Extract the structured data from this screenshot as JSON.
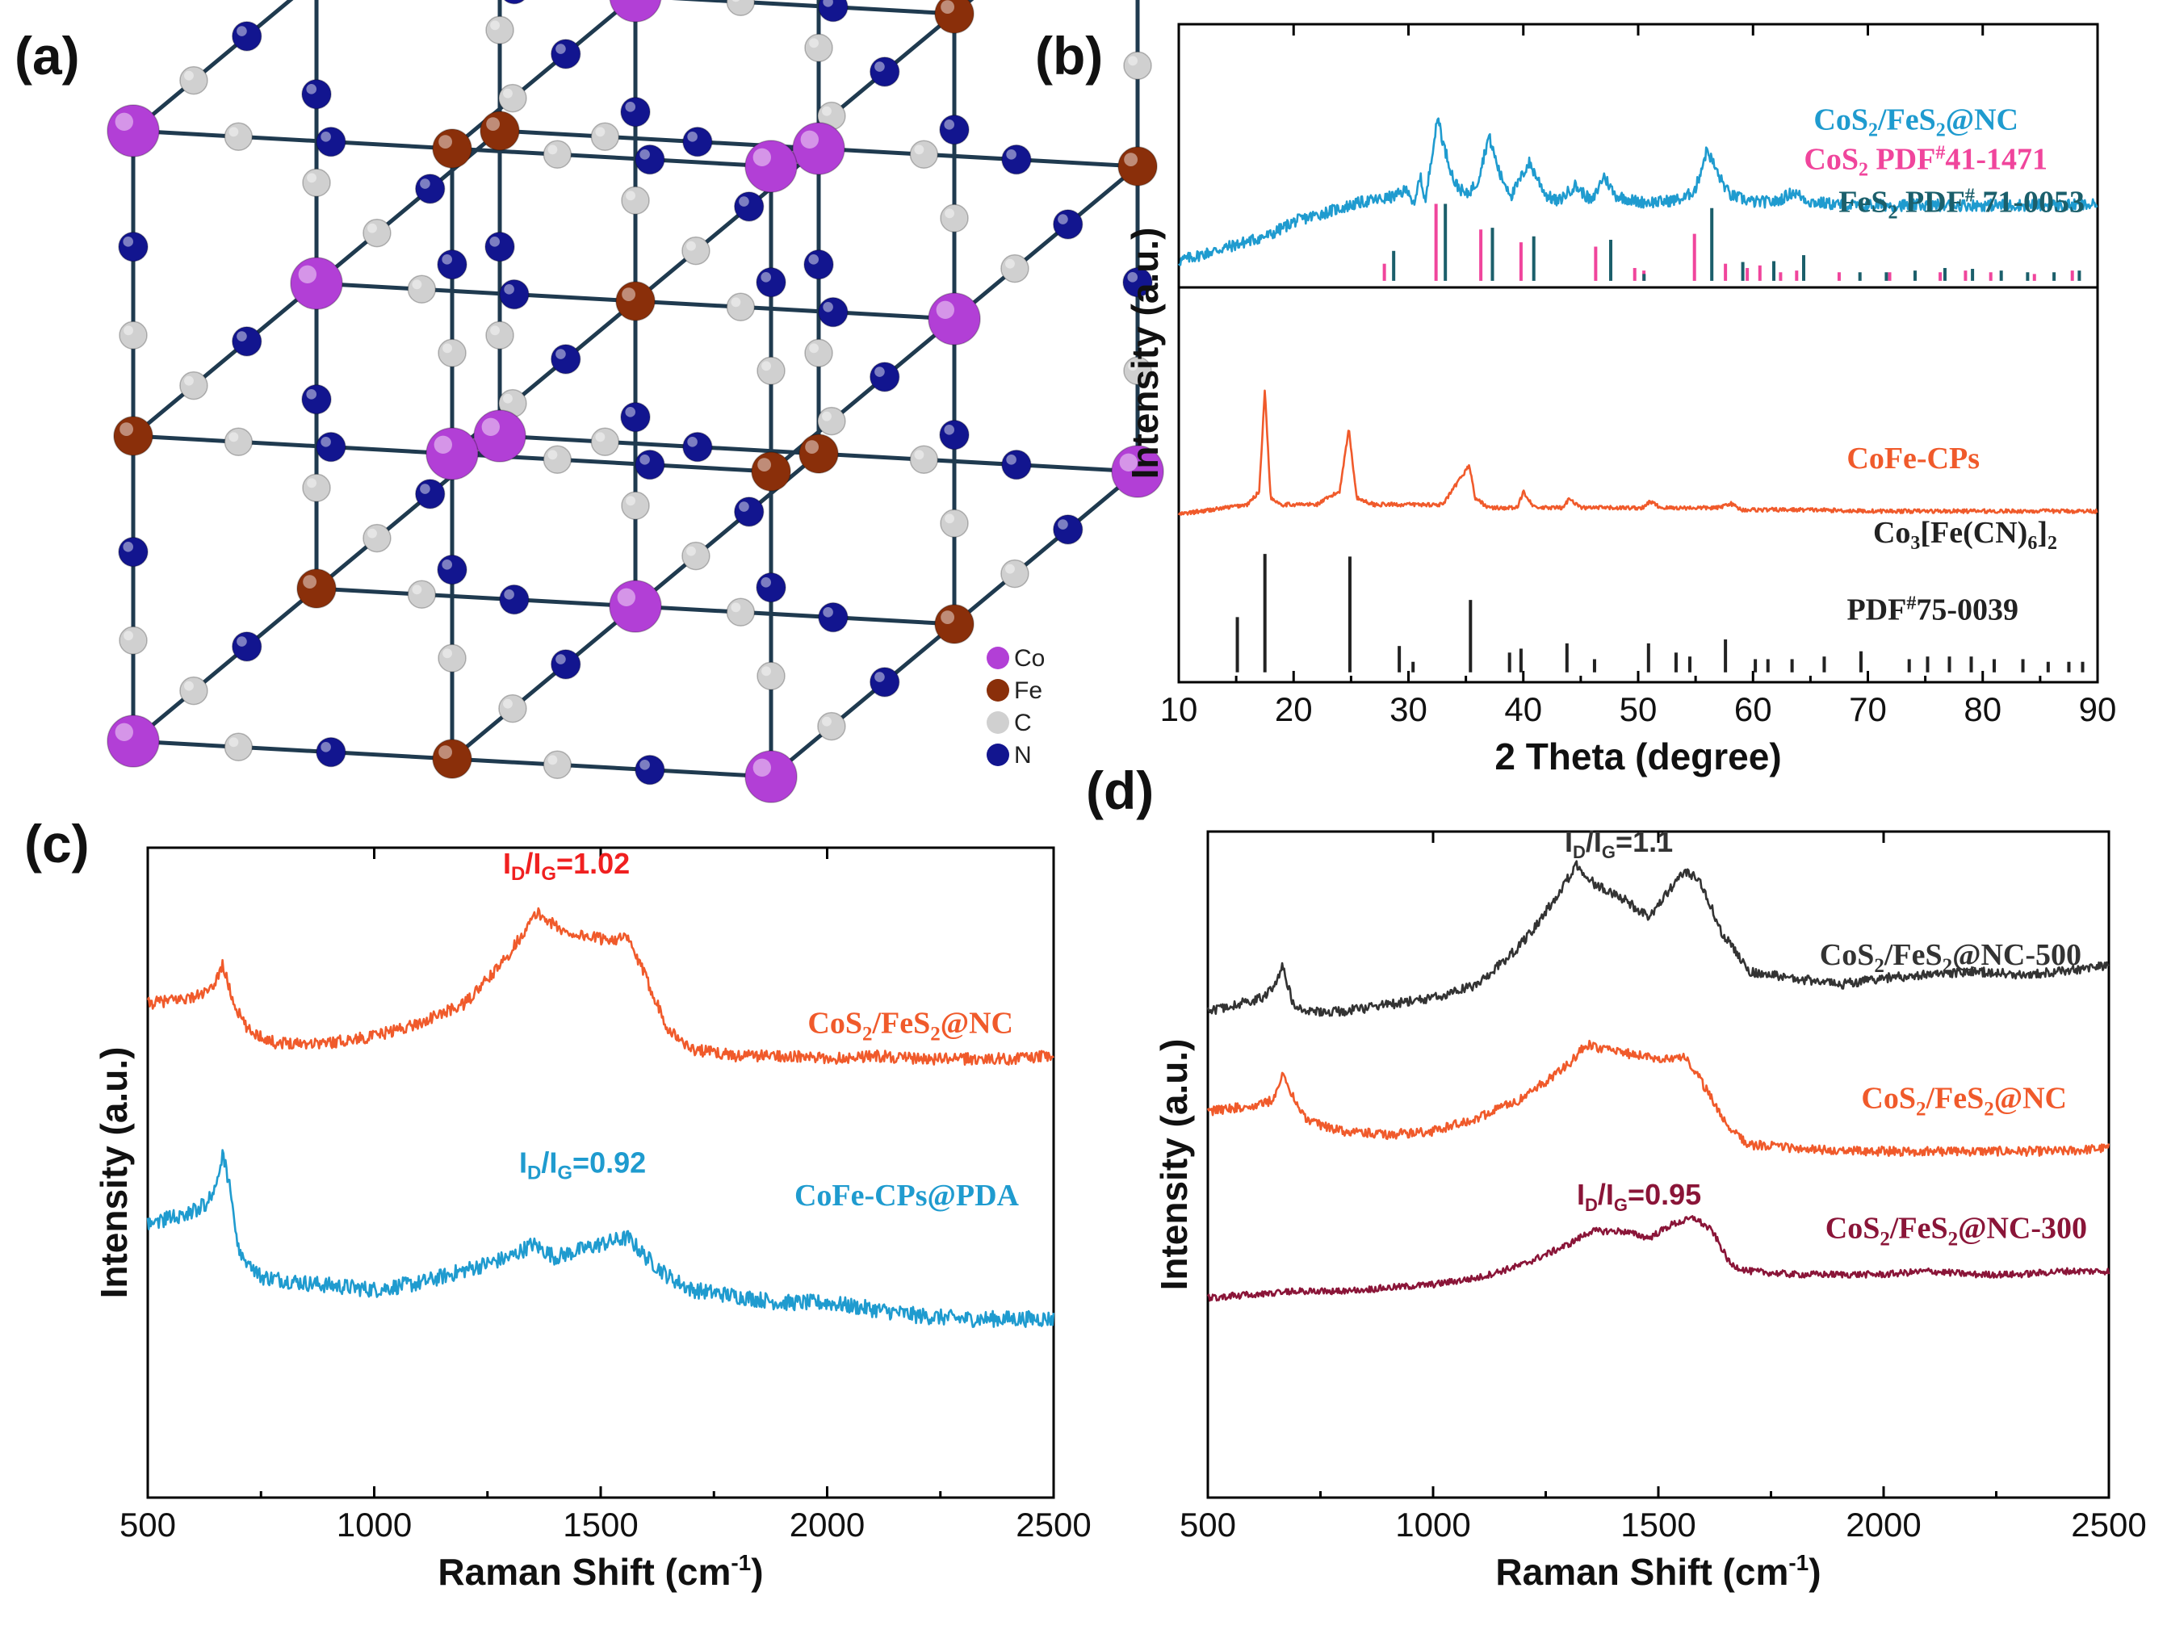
{
  "panel_labels": {
    "a": "(a)",
    "b": "(b)",
    "c": "(c)",
    "d": "(d)"
  },
  "lattice": {
    "legend": [
      {
        "label": "Co",
        "color": "#b23fd6"
      },
      {
        "label": "Fe",
        "color": "#8a2f0a"
      },
      {
        "label": "C",
        "color": "#d0d0d0"
      },
      {
        "label": "N",
        "color": "#12158f"
      }
    ]
  },
  "chart_data": [
    {
      "id": "b",
      "type": "line",
      "xlabel": "2 Theta (degree)",
      "ylabel": "Intensity (a.u.)",
      "xlim": [
        10,
        90
      ],
      "xticks": [
        10,
        20,
        30,
        40,
        50,
        60,
        70,
        80,
        90
      ],
      "series": [
        {
          "name": "CoS2/FeS2@NC",
          "label_main": "CoS",
          "label_sub": "2",
          "label_rest": "/FeS",
          "label_sub2": "2",
          "label_tail": "@NC",
          "color": "#1f9bcf",
          "x": [
            10,
            12,
            14,
            16,
            18,
            20,
            22,
            24,
            26,
            28,
            29,
            30,
            30.5,
            31,
            31.5,
            32,
            32.6,
            33,
            34,
            35,
            36,
            37,
            38,
            39,
            40.5,
            42,
            43,
            44.5,
            46,
            47,
            48,
            50,
            52,
            54,
            55,
            56,
            57,
            58,
            60,
            62,
            63.5,
            65,
            68,
            70,
            75,
            80,
            85,
            90
          ],
          "y": [
            0.64,
            0.65,
            0.66,
            0.67,
            0.68,
            0.7,
            0.71,
            0.72,
            0.73,
            0.735,
            0.74,
            0.75,
            0.72,
            0.77,
            0.73,
            0.8,
            0.86,
            0.82,
            0.76,
            0.74,
            0.76,
            0.83,
            0.77,
            0.74,
            0.79,
            0.74,
            0.73,
            0.755,
            0.73,
            0.77,
            0.74,
            0.73,
            0.73,
            0.735,
            0.75,
            0.81,
            0.77,
            0.74,
            0.73,
            0.73,
            0.745,
            0.73,
            0.725,
            0.725,
            0.725,
            0.725,
            0.725,
            0.725
          ]
        },
        {
          "name": "CoFe-CPs",
          "label_main": "CoFe-CPs",
          "color": "#f05a2b",
          "x": [
            10,
            14,
            16,
            17,
            17.5,
            18,
            19,
            22,
            24,
            24.8,
            25.5,
            27,
            33,
            35.3,
            35.8,
            37,
            39.5,
            40,
            41,
            43.5,
            44,
            45,
            50.5,
            51,
            52,
            57,
            58,
            59,
            65,
            70,
            80,
            90
          ],
          "y": [
            0.255,
            0.265,
            0.27,
            0.29,
            0.445,
            0.28,
            0.27,
            0.27,
            0.29,
            0.385,
            0.28,
            0.27,
            0.27,
            0.33,
            0.28,
            0.265,
            0.265,
            0.29,
            0.265,
            0.265,
            0.28,
            0.265,
            0.265,
            0.275,
            0.265,
            0.265,
            0.272,
            0.262,
            0.262,
            0.26,
            0.26,
            0.26
          ]
        }
      ],
      "reference_patterns": [
        {
          "name": "CoS2 PDF#41-1471",
          "label_main": "CoS",
          "label_sub": "2",
          "label_rest": "  PDF",
          "label_sup": "#",
          "label_tail": "41-1471",
          "color": "#f0459c",
          "peaks": [
            [
              27.9,
              0.2
            ],
            [
              32.4,
              0.9
            ],
            [
              36.3,
              0.6
            ],
            [
              39.8,
              0.45
            ],
            [
              46.3,
              0.4
            ],
            [
              49.7,
              0.15
            ],
            [
              50.5,
              0.12
            ],
            [
              54.9,
              0.55
            ],
            [
              57.6,
              0.2
            ],
            [
              59.5,
              0.15
            ],
            [
              60.6,
              0.18
            ],
            [
              62.4,
              0.1
            ],
            [
              63.8,
              0.12
            ],
            [
              67.5,
              0.1
            ],
            [
              71.9,
              0.1
            ],
            [
              76.3,
              0.1
            ],
            [
              78.5,
              0.12
            ],
            [
              80.7,
              0.1
            ],
            [
              84.5,
              0.08
            ],
            [
              87.8,
              0.12
            ]
          ]
        },
        {
          "name": "FeS2 PDF# 71-0053",
          "label_main": "FeS",
          "label_sub": "2",
          "label_rest": " PDF",
          "label_sup": "#",
          "label_tail": " 71-0053",
          "color": "#1b5f6b",
          "peaks": [
            [
              28.5,
              0.35
            ],
            [
              33.0,
              0.9
            ],
            [
              37.1,
              0.62
            ],
            [
              40.7,
              0.52
            ],
            [
              47.4,
              0.48
            ],
            [
              50.3,
              0.08
            ],
            [
              56.2,
              0.85
            ],
            [
              58.9,
              0.22
            ],
            [
              61.6,
              0.23
            ],
            [
              64.2,
              0.3
            ],
            [
              69.1,
              0.1
            ],
            [
              71.4,
              0.1
            ],
            [
              73.9,
              0.12
            ],
            [
              76.5,
              0.15
            ],
            [
              78.9,
              0.14
            ],
            [
              81.4,
              0.12
            ],
            [
              83.7,
              0.1
            ],
            [
              86.0,
              0.1
            ],
            [
              88.2,
              0.12
            ]
          ]
        },
        {
          "name": "Co3[Fe(CN)6]2 PDF#75-0039",
          "label_main": "Co",
          "label_sub": "3",
          "label_rest": "[Fe(CN)",
          "label_sub2": "6",
          "label_tail": "]",
          "label_sub3": "2",
          "pdf_label": "PDF",
          "pdf_sup": "#",
          "pdf_tail": "75-0039",
          "color": "#222222",
          "peaks": [
            [
              15.1,
              0.42
            ],
            [
              17.5,
              0.9
            ],
            [
              24.9,
              0.88
            ],
            [
              29.2,
              0.2
            ],
            [
              30.4,
              0.08
            ],
            [
              35.4,
              0.55
            ],
            [
              38.8,
              0.15
            ],
            [
              39.8,
              0.18
            ],
            [
              43.8,
              0.22
            ],
            [
              46.2,
              0.1
            ],
            [
              50.9,
              0.22
            ],
            [
              53.3,
              0.15
            ],
            [
              54.5,
              0.12
            ],
            [
              57.6,
              0.25
            ],
            [
              60.2,
              0.1
            ],
            [
              61.3,
              0.1
            ],
            [
              63.4,
              0.1
            ],
            [
              66.2,
              0.12
            ],
            [
              69.4,
              0.16
            ],
            [
              73.6,
              0.1
            ],
            [
              75.2,
              0.12
            ],
            [
              77.1,
              0.12
            ],
            [
              79.0,
              0.12
            ],
            [
              81.0,
              0.1
            ],
            [
              83.5,
              0.1
            ],
            [
              85.7,
              0.08
            ],
            [
              87.5,
              0.08
            ],
            [
              88.7,
              0.08
            ]
          ]
        }
      ]
    },
    {
      "id": "c",
      "type": "line",
      "xlabel": "Raman Shift (cm",
      "xlabel_sup": "-1",
      "xlabel_tail": ")",
      "ylabel": "Intensity (a.u.)",
      "xlim": [
        500,
        2500
      ],
      "xticks": [
        500,
        1000,
        1500,
        2000,
        2500
      ],
      "series": [
        {
          "name": "CoS2/FeS2@NC",
          "label_main": "CoS",
          "label_sub": "2",
          "label_rest": "/FeS",
          "label_sub2": "2",
          "label_tail": "@NC",
          "color": "#f05a2b",
          "ratio_main": "I",
          "ratio_sub": "D",
          "ratio_mid": "/I",
          "ratio_sub2": "G",
          "ratio_tail": "=1.02",
          "ratio_color": "#f02020",
          "x": [
            500,
            550,
            600,
            640,
            665,
            690,
            720,
            780,
            900,
            1000,
            1100,
            1200,
            1280,
            1340,
            1360,
            1420,
            1500,
            1560,
            1600,
            1650,
            1700,
            1800,
            1900,
            2000,
            2100,
            2200,
            2300,
            2400,
            2500
          ],
          "y": [
            0.76,
            0.765,
            0.77,
            0.78,
            0.82,
            0.76,
            0.72,
            0.7,
            0.7,
            0.71,
            0.73,
            0.76,
            0.82,
            0.88,
            0.9,
            0.87,
            0.86,
            0.86,
            0.8,
            0.72,
            0.69,
            0.68,
            0.68,
            0.675,
            0.68,
            0.675,
            0.675,
            0.675,
            0.68
          ]
        },
        {
          "name": "CoFe-CPs@PDA",
          "label_main": "CoFe-CPs@PDA",
          "color": "#1f9bcf",
          "ratio_main": "I",
          "ratio_sub": "D",
          "ratio_mid": "/I",
          "ratio_sub2": "G",
          "ratio_tail": "=0.92",
          "ratio_color": "#1f9bcf",
          "x": [
            500,
            550,
            600,
            640,
            665,
            680,
            700,
            750,
            850,
            1000,
            1100,
            1200,
            1300,
            1350,
            1400,
            1500,
            1560,
            1600,
            1650,
            1700,
            1800,
            1900,
            2000,
            2100,
            2200,
            2300,
            2400,
            2500
          ],
          "y": [
            0.42,
            0.43,
            0.44,
            0.46,
            0.53,
            0.48,
            0.38,
            0.34,
            0.33,
            0.32,
            0.33,
            0.35,
            0.37,
            0.39,
            0.37,
            0.39,
            0.4,
            0.37,
            0.34,
            0.32,
            0.31,
            0.3,
            0.3,
            0.29,
            0.28,
            0.275,
            0.275,
            0.275
          ]
        }
      ]
    },
    {
      "id": "d",
      "type": "line",
      "xlabel": "Raman Shift (cm",
      "xlabel_sup": "-1",
      "xlabel_tail": ")",
      "ylabel": "Intensity (a.u.)",
      "xlim": [
        500,
        2500
      ],
      "xticks": [
        500,
        1000,
        1500,
        2000,
        2500
      ],
      "series": [
        {
          "name": "CoS2/FeS2@NC-500",
          "label_main": "CoS",
          "label_sub": "2",
          "label_rest": "/FeS",
          "label_sub2": "2",
          "label_tail": "@NC-500",
          "color": "#333333",
          "label_color": "#333333",
          "ratio_main": "I",
          "ratio_sub": "D",
          "ratio_mid": "/I",
          "ratio_sub2": "G",
          "ratio_tail": "=1.1",
          "ratio_color": "#333333",
          "x": [
            500,
            560,
            620,
            650,
            665,
            690,
            730,
            800,
            900,
            1000,
            1100,
            1180,
            1220,
            1300,
            1320,
            1360,
            1420,
            1480,
            1510,
            1560,
            1590,
            1640,
            1700,
            1800,
            1900,
            2000,
            2100,
            2200,
            2300,
            2400,
            2500
          ],
          "y": [
            0.73,
            0.74,
            0.75,
            0.77,
            0.8,
            0.74,
            0.73,
            0.73,
            0.74,
            0.75,
            0.77,
            0.82,
            0.85,
            0.93,
            0.95,
            0.92,
            0.9,
            0.87,
            0.9,
            0.94,
            0.93,
            0.85,
            0.79,
            0.78,
            0.77,
            0.78,
            0.785,
            0.79,
            0.785,
            0.79,
            0.8
          ]
        },
        {
          "name": "CoS2/FeS2@NC",
          "label_main": "CoS",
          "label_sub": "2",
          "label_rest": "/FeS",
          "label_sub2": "2",
          "label_tail": "@NC",
          "color": "#f05a2b",
          "label_color": "#f05a2b",
          "x": [
            500,
            560,
            620,
            650,
            665,
            690,
            720,
            800,
            900,
            1000,
            1100,
            1200,
            1300,
            1340,
            1400,
            1500,
            1560,
            1600,
            1650,
            1700,
            1800,
            1900,
            2000,
            2100,
            2200,
            2300,
            2400,
            2500
          ],
          "y": [
            0.58,
            0.585,
            0.59,
            0.6,
            0.64,
            0.6,
            0.565,
            0.55,
            0.545,
            0.55,
            0.57,
            0.6,
            0.65,
            0.68,
            0.67,
            0.66,
            0.66,
            0.62,
            0.56,
            0.53,
            0.525,
            0.52,
            0.52,
            0.52,
            0.52,
            0.52,
            0.52,
            0.525
          ]
        },
        {
          "name": "CoS2/FeS2@NC-300",
          "label_main": "CoS",
          "label_sub": "2",
          "label_rest": "/FeS",
          "label_sub2": "2",
          "label_tail": "@NC-300",
          "color": "#8a1538",
          "label_color": "#8a1538",
          "ratio_main": "I",
          "ratio_sub": "D",
          "ratio_mid": "/I",
          "ratio_sub2": "G",
          "ratio_tail": "=0.95",
          "ratio_color": "#8a1538",
          "x": [
            500,
            600,
            700,
            800,
            900,
            1000,
            1100,
            1200,
            1300,
            1350,
            1420,
            1480,
            1530,
            1580,
            1620,
            1660,
            1700,
            1800,
            1900,
            2000,
            2100,
            2200,
            2300,
            2400,
            2500
          ],
          "y": [
            0.3,
            0.305,
            0.31,
            0.31,
            0.315,
            0.32,
            0.33,
            0.35,
            0.38,
            0.4,
            0.4,
            0.39,
            0.41,
            0.42,
            0.4,
            0.35,
            0.34,
            0.335,
            0.335,
            0.335,
            0.34,
            0.335,
            0.335,
            0.34,
            0.34
          ]
        }
      ]
    }
  ]
}
